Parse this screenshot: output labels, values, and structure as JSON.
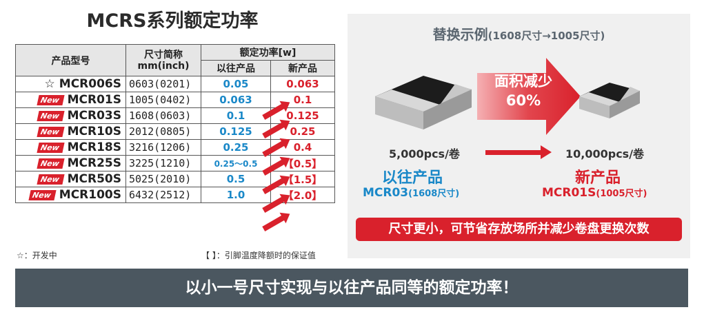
{
  "title": "MCRS系列额定功率",
  "table": {
    "header_model": "产品型号",
    "header_size": "尺寸简称",
    "header_size_unit": "mm(inch)",
    "header_power": "额定功率[w]",
    "sub_old": "以往产品",
    "sub_new": "新产品",
    "new_tag": "New",
    "star": "☆",
    "rows": [
      {
        "model": "MCR006S",
        "size": "0603(0201)",
        "old": "0.05",
        "new": "0.063"
      },
      {
        "model": "MCR01S",
        "size": "1005(0402)",
        "old": "0.063",
        "new": "0.1"
      },
      {
        "model": "MCR03S",
        "size": "1608(0603)",
        "old": "0.1",
        "new": "0.125"
      },
      {
        "model": "MCR10S",
        "size": "2012(0805)",
        "old": "0.125",
        "new": "0.25"
      },
      {
        "model": "MCR18S",
        "size": "3216(1206)",
        "old": "0.25",
        "new": "0.4"
      },
      {
        "model": "MCR25S",
        "size": "3225(1210)",
        "old": "0.25～0.5",
        "new": "【0.5】"
      },
      {
        "model": "MCR50S",
        "size": "5025(2010)",
        "old": "0.5",
        "new": "【1.5】"
      },
      {
        "model": "MCR100S",
        "size": "6432(2512)",
        "old": "1.0",
        "new": "【2.0】"
      }
    ]
  },
  "footnote_left": "☆：开发中",
  "footnote_right": "【 】：引脚温度降额时的保证值",
  "example": {
    "title": "替换示例",
    "title_note": "(1608尺寸→1005尺寸)",
    "reduce_line1": "面积减少",
    "reduce_line2": "60%",
    "qty_old": "5,000pcs/卷",
    "qty_new": "10,000pcs/卷",
    "label_old": "以往产品",
    "label_new": "新产品",
    "model_old": "MCR03",
    "model_old_note": "(1608尺寸)",
    "model_new": "MCR01S",
    "model_new_note": "(1005尺寸)",
    "banner": "尺寸更小，可节省存放场所并减少卷盘更换次数"
  },
  "bottom": "以小一号尺寸实现与以往产品同等的额定功率！",
  "colors": {
    "accent_red": "#d9212c",
    "accent_blue": "#1a88c8",
    "bar": "#4b5760"
  }
}
